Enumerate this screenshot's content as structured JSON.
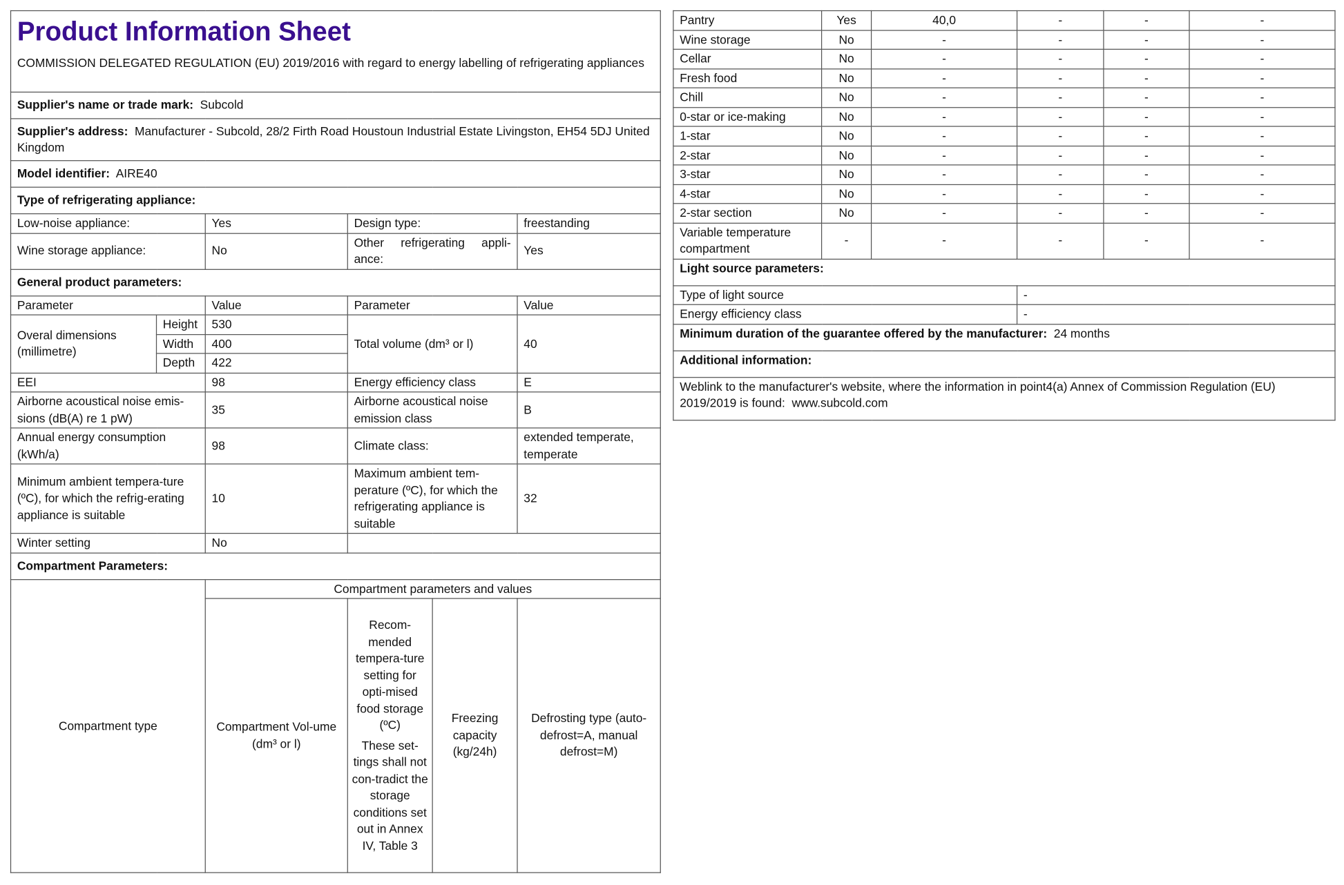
{
  "title": "Product Information Sheet",
  "regulation": "COMMISSION DELEGATED REGULATION (EU) 2019/2016 with regard to energy labelling of refrigerating appliances",
  "supplier_name": {
    "label": "Supplier's name or trade mark:",
    "value": "Subcold"
  },
  "supplier_address": {
    "label": "Supplier's address:",
    "value": "Manufacturer - Subcold, 28/2 Firth Road Houstoun Industrial Estate Livingston, EH54 5DJ United Kingdom"
  },
  "model": {
    "label": "Model identifier:",
    "value": "AIRE40"
  },
  "type_heading": "Type of refrigerating appliance:",
  "type": {
    "low_noise_label": "Low-noise appliance:",
    "low_noise": "Yes",
    "design_label": "Design type:",
    "design": "freestanding",
    "wine_label": "Wine storage appliance:",
    "wine": "No",
    "other_label": "Other refrigerating appli-ance:",
    "other": "Yes"
  },
  "general_heading": "General product parameters:",
  "general": {
    "param_h": "Parameter",
    "value_h": "Value",
    "dims_label": "Overal dimensions (millimetre)",
    "height_label": "Height",
    "height": "530",
    "width_label": "Width",
    "width": "400",
    "depth_label": "Depth",
    "depth": "422",
    "volume_label": "Total volume (dm³ or l)",
    "volume": "40",
    "eei_label": "EEI",
    "eei": "98",
    "eec_label": "Energy efficiency class",
    "eec": "E",
    "noise_label": "Airborne acoustical noise emis-sions (dB(A) re 1 pW)",
    "noise": "35",
    "noise_class_label": "Airborne acoustical noise emission class",
    "noise_class": "B",
    "aec_label": "Annual energy consumption (kWh/a)",
    "aec": "98",
    "climate_label": "Climate class:",
    "climate": "extended temperate, temperate",
    "min_amb_label": "Minimum ambient tempera-ture (ºC), for which the refrig-erating appliance is suitable",
    "min_amb": "10",
    "max_amb_label": "Maximum ambient tem-perature (ºC), for which the refrigerating appliance is suitable",
    "max_amb": "32",
    "winter_label": "Winter setting",
    "winter": "No"
  },
  "compartment_heading": "Compartment Parameters:",
  "compartment_headers": {
    "group": "Compartment parameters and values",
    "type": "Compartment type",
    "volume": "Compartment Vol-ume (dm³ or l)",
    "temp": "Recom-mended tempera-ture setting for opti-mised food storage (ºC)",
    "temp_note": "These set-tings shall not con-tradict the storage conditions set out in Annex IV, Table 3",
    "freezing": "Freezing capacity (kg/24h)",
    "defrost": "Defrosting type (auto-defrost=A, manual defrost=M)"
  },
  "compartments": [
    [
      "Pantry",
      "Yes",
      "40,0",
      "-",
      "-",
      "-"
    ],
    [
      "Wine storage",
      "No",
      "-",
      "-",
      "-",
      "-"
    ],
    [
      "Cellar",
      "No",
      "-",
      "-",
      "-",
      "-"
    ],
    [
      "Fresh food",
      "No",
      "-",
      "-",
      "-",
      "-"
    ],
    [
      "Chill",
      "No",
      "-",
      "-",
      "-",
      "-"
    ],
    [
      "0-star or ice-making",
      "No",
      "-",
      "-",
      "-",
      "-"
    ],
    [
      "1-star",
      "No",
      "-",
      "-",
      "-",
      "-"
    ],
    [
      "2-star",
      "No",
      "-",
      "-",
      "-",
      "-"
    ],
    [
      "3-star",
      "No",
      "-",
      "-",
      "-",
      "-"
    ],
    [
      "4-star",
      "No",
      "-",
      "-",
      "-",
      "-"
    ],
    [
      "2-star section",
      "No",
      "-",
      "-",
      "-",
      "-"
    ],
    [
      "Variable temperature compartment",
      "-",
      "-",
      "-",
      "-",
      "-"
    ]
  ],
  "light_heading": "Light source parameters:",
  "light": {
    "type_label": "Type of light source",
    "type": "-",
    "eec_label": "Energy efficiency class",
    "eec": "-"
  },
  "guarantee": {
    "label": "Minimum duration of the guarantee offered by the manufacturer:",
    "value": "24 months"
  },
  "additional_heading": "Additional information:",
  "weblink": {
    "text": "Weblink to the manufacturer's website, where the information in point4(a) Annex of Commission Regulation (EU) 2019/2019 is found:",
    "url": "www.subcold.com"
  },
  "colors": {
    "title": "#3a0f8f",
    "border": "#555555"
  }
}
